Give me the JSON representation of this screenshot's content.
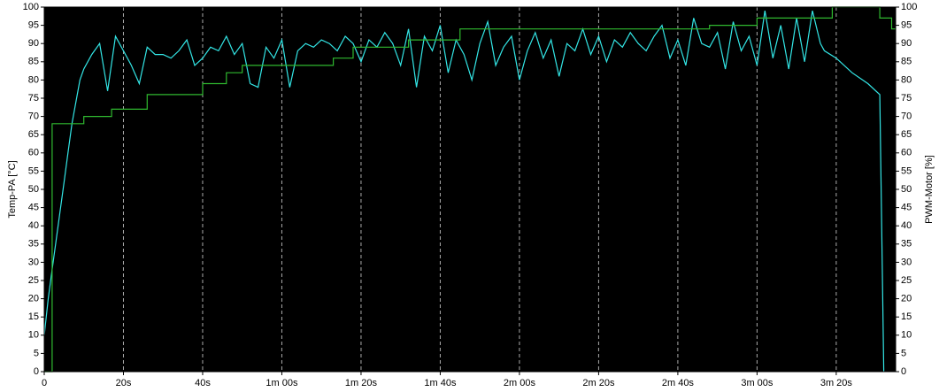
{
  "chart_data": {
    "type": "line",
    "y_label": "Temp-PA [°C]",
    "y2_label": "PWM-Motor [%]",
    "xlim": [
      0,
      215
    ],
    "ylim": [
      0,
      100
    ],
    "y2lim": [
      0,
      100
    ],
    "xticks": [
      0,
      {
        "value": 20,
        "label": "20s"
      },
      {
        "value": 40,
        "label": "40s"
      },
      {
        "value": 60,
        "label": "1m 00s"
      },
      {
        "value": 80,
        "label": "1m 20s"
      },
      {
        "value": 100,
        "label": "1m 40s"
      },
      {
        "value": 120,
        "label": "2m 00s"
      },
      {
        "value": 140,
        "label": "2m 20s"
      },
      {
        "value": 160,
        "label": "2m 40s"
      },
      {
        "value": 180,
        "label": "3m 00s"
      },
      {
        "value": 200,
        "label": "3m 20s"
      }
    ],
    "yticks": [
      0,
      5,
      10,
      15,
      20,
      25,
      30,
      35,
      40,
      45,
      50,
      55,
      60,
      65,
      70,
      75,
      80,
      85,
      90,
      95,
      100
    ],
    "y2ticks": [
      0,
      5,
      10,
      15,
      20,
      25,
      30,
      35,
      40,
      45,
      50,
      55,
      60,
      65,
      70,
      75,
      80,
      85,
      90,
      95,
      100
    ],
    "grid": true,
    "series": [
      {
        "name": "Temp-PA",
        "color": "#33e6e6",
        "axis": "y",
        "x": [
          0,
          1,
          2,
          3,
          4,
          5,
          6,
          7,
          8,
          9,
          10,
          12,
          14,
          16,
          18,
          20,
          22,
          24,
          26,
          28,
          30,
          32,
          34,
          36,
          38,
          40,
          42,
          44,
          46,
          48,
          50,
          52,
          54,
          56,
          58,
          60,
          62,
          64,
          66,
          68,
          70,
          72,
          74,
          76,
          78,
          80,
          82,
          84,
          86,
          88,
          90,
          92,
          94,
          96,
          98,
          100,
          102,
          104,
          106,
          108,
          110,
          112,
          114,
          116,
          118,
          120,
          122,
          124,
          126,
          128,
          130,
          132,
          134,
          136,
          138,
          140,
          142,
          144,
          146,
          148,
          150,
          152,
          154,
          156,
          158,
          160,
          162,
          164,
          166,
          168,
          170,
          172,
          174,
          176,
          178,
          180,
          182,
          184,
          186,
          188,
          190,
          192,
          194,
          196,
          197,
          200,
          204,
          208,
          211,
          212
        ],
        "values": [
          10,
          20,
          28,
          36,
          44,
          52,
          60,
          68,
          74,
          80,
          83,
          87,
          90,
          77,
          92,
          88,
          84,
          79,
          89,
          87,
          87,
          86,
          88,
          91,
          84,
          86,
          89,
          88,
          92,
          87,
          90,
          79,
          78,
          89,
          86,
          91,
          78,
          88,
          90,
          89,
          91,
          90,
          88,
          92,
          90,
          85,
          91,
          89,
          93,
          90,
          84,
          94,
          78,
          92,
          88,
          95,
          82,
          91,
          87,
          80,
          90,
          96,
          84,
          89,
          92,
          80,
          88,
          93,
          86,
          91,
          81,
          90,
          88,
          94,
          87,
          92,
          85,
          91,
          89,
          93,
          90,
          88,
          92,
          95,
          86,
          91,
          84,
          97,
          90,
          89,
          93,
          83,
          96,
          88,
          92,
          84,
          99,
          86,
          95,
          83,
          97,
          85,
          99,
          90,
          88,
          86,
          82,
          79,
          76,
          0
        ]
      },
      {
        "name": "PWM-Motor",
        "color": "#2fb82f",
        "axis": "y2",
        "x": [
          0,
          2,
          2,
          10,
          10,
          17,
          17,
          26,
          26,
          40,
          40,
          46,
          46,
          50,
          50,
          73,
          73,
          78,
          78,
          92,
          92,
          105,
          105,
          168,
          168,
          180,
          180,
          199,
          199,
          211,
          211,
          214,
          214,
          215
        ],
        "values": [
          0,
          0,
          68,
          68,
          70,
          70,
          72,
          72,
          76,
          76,
          79,
          79,
          82,
          82,
          84,
          84,
          86,
          86,
          89,
          89,
          91,
          91,
          94,
          94,
          95,
          95,
          97,
          97,
          100,
          100,
          97,
          97,
          94,
          94
        ]
      }
    ]
  }
}
